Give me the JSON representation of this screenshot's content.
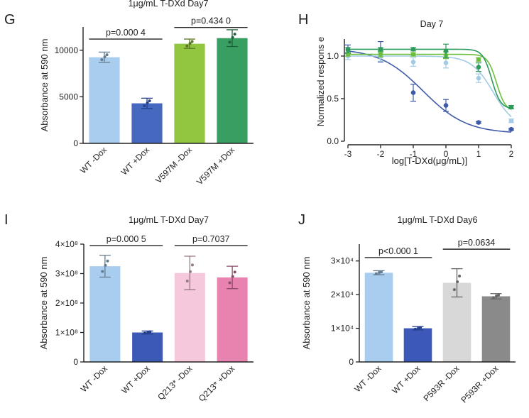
{
  "chart_data": [
    {
      "panel": "G",
      "type": "bar",
      "title": "1μg/mL T-DXd Day7",
      "ylabel": "Absorbance at 590 nm",
      "categories": [
        "WT -Dox",
        "WT +Dox",
        "V597M -Dox",
        "V597M +Dox"
      ],
      "values": [
        9250,
        4300,
        10700,
        11300
      ],
      "errors": [
        550,
        550,
        500,
        900
      ],
      "colors": [
        "#a9cdee",
        "#4768bf",
        "#92c640",
        "#389e62"
      ],
      "ylim": [
        0,
        12500
      ],
      "yticks": [
        {
          "v": 0,
          "label": "0"
        },
        {
          "v": 5000,
          "label": "5000"
        },
        {
          "v": 10000,
          "label": "10000"
        }
      ],
      "comparisons": [
        {
          "label": "p=0.000 4",
          "from": 0,
          "to": 1,
          "y": 11200
        },
        {
          "label": "p=0.434 0",
          "from": 2,
          "to": 3,
          "y": 12450
        }
      ]
    },
    {
      "panel": "H",
      "type": "line",
      "title": "Day 7",
      "xlabel": "log[T-DXd(μg/mL)]",
      "ylabel": "Normalized respons e",
      "xlim": [
        -3,
        2
      ],
      "ylim": [
        0,
        1.2
      ],
      "xticks": [
        -3,
        -2,
        -1,
        0,
        1,
        2
      ],
      "yticks": [
        {
          "v": 0,
          "label": "0.0"
        },
        {
          "v": 0.5,
          "label": "0.5"
        },
        {
          "v": 1,
          "label": "1.0"
        }
      ],
      "series": [
        {
          "color": "#3f5aa8",
          "x": [
            -3,
            -2,
            -1,
            0,
            1,
            2
          ],
          "y": [
            1.08,
            1.05,
            0.57,
            0.42,
            0.22,
            0.14
          ],
          "err": [
            0.05,
            0.12,
            0.1,
            0.07,
            0.01,
            0.01
          ],
          "fit": {
            "top": 1.09,
            "bottom": 0.09,
            "ec50": -0.7,
            "hill": 0.65
          }
        },
        {
          "color": "#a2cbe5",
          "x": [
            -3,
            -2,
            -1,
            0,
            1,
            2
          ],
          "y": [
            1.0,
            0.99,
            0.93,
            0.92,
            0.74,
            0.24
          ],
          "err": [
            0.04,
            0.05,
            0.05,
            0.06,
            0.05,
            0.02
          ],
          "fit": {
            "top": 1.0,
            "bottom": 0.15,
            "ec50": 1.45,
            "hill": 1.3
          }
        },
        {
          "color": "#6cbf3c",
          "x": [
            -3,
            -2,
            -1,
            0,
            1,
            2
          ],
          "y": [
            1.02,
            1.02,
            1.02,
            1.01,
            0.96,
            0.4
          ],
          "err": [
            0.02,
            0.03,
            0.02,
            0.04,
            0.02,
            0.02
          ],
          "fit": {
            "top": 1.02,
            "bottom": 0.35,
            "ec50": 1.55,
            "hill": 3.2
          }
        },
        {
          "color": "#2e9a5c",
          "x": [
            -3,
            -2,
            -1,
            0,
            1,
            2
          ],
          "y": [
            1.07,
            1.08,
            1.08,
            1.06,
            0.87,
            0.4
          ],
          "err": [
            0.03,
            0.02,
            0.02,
            0.08,
            0.05,
            0.02
          ],
          "fit": {
            "top": 1.08,
            "bottom": 0.38,
            "ec50": 1.4,
            "hill": 3.2
          }
        }
      ]
    },
    {
      "panel": "I",
      "type": "bar",
      "title": "1μg/mL T-DXd Day7",
      "ylabel": "Absorbance at 590 nm",
      "categories": [
        "WT -Dox",
        "WT +Dox",
        "Q213* -Dox",
        "Q213* +Dox"
      ],
      "values": [
        325000000,
        100000000,
        302000000,
        287000000
      ],
      "errors": [
        37000000,
        5000000,
        57000000,
        38000000
      ],
      "colors": [
        "#a9cdee",
        "#3d59b8",
        "#f6c8dc",
        "#e882ae"
      ],
      "ylim": [
        0,
        400000000
      ],
      "yticks": [
        {
          "v": 0,
          "label": "0"
        },
        {
          "v": 100000000,
          "label": "1×10⁸"
        },
        {
          "v": 200000000,
          "label": "2×10⁸"
        },
        {
          "v": 300000000,
          "label": "3×10⁸"
        },
        {
          "v": 400000000,
          "label": "4×10⁸"
        }
      ],
      "comparisons": [
        {
          "label": "p=0.000 5",
          "from": 0,
          "to": 1,
          "y": 395000000
        },
        {
          "label": "p=0.7037",
          "from": 2,
          "to": 3,
          "y": 395000000
        }
      ]
    },
    {
      "panel": "J",
      "type": "bar",
      "title": "1μg/mL T-DXd Day6",
      "ylabel": "Absorbance at 590 nm",
      "categories": [
        "WT -Dox",
        "WT +Dox",
        "P593R -Dox",
        "P593R +Dox"
      ],
      "values": [
        26500,
        10000,
        23500,
        19500
      ],
      "errors": [
        600,
        500,
        4200,
        800
      ],
      "colors": [
        "#a9cdee",
        "#3c58b8",
        "#d8d8d8",
        "#8a8a8a"
      ],
      "ylim": [
        0,
        35000
      ],
      "yticks": [
        {
          "v": 0,
          "label": "0"
        },
        {
          "v": 10000,
          "label": "1×10⁴"
        },
        {
          "v": 20000,
          "label": "2×10⁴"
        },
        {
          "v": 30000,
          "label": "3×10⁴"
        }
      ],
      "comparisons": [
        {
          "label": "p<0.000 1",
          "from": 0,
          "to": 1,
          "y": 31000
        },
        {
          "label": "p=0.0634",
          "from": 2,
          "to": 3,
          "y": 33500
        }
      ]
    }
  ],
  "panel_letters": {
    "g": "G",
    "h": "H",
    "i": "I",
    "j": "J"
  }
}
